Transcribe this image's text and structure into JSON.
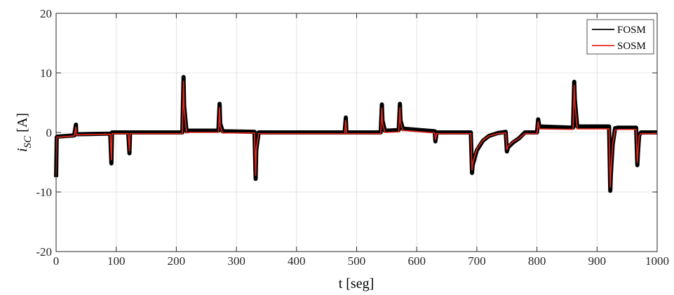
{
  "chart_data": {
    "type": "line",
    "xlabel": "t [seg]",
    "ylabel_main": "i",
    "ylabel_sub": "SC",
    "ylabel_unit": " [A]",
    "xlim": [
      0,
      1000
    ],
    "ylim": [
      -20,
      20
    ],
    "xticks": [
      0,
      100,
      200,
      300,
      400,
      500,
      600,
      700,
      800,
      900,
      1000
    ],
    "yticks": [
      -20,
      -10,
      0,
      10,
      20
    ],
    "grid": true,
    "legend_position": "top-right",
    "series": [
      {
        "name": "FOSM",
        "color": "#000000",
        "band": 0.35,
        "x": [
          0,
          1,
          2,
          30,
          33,
          33.5,
          36,
          90,
          92,
          93,
          95,
          97,
          120,
          122,
          123,
          125,
          127,
          210,
          212,
          213,
          217,
          222,
          270,
          272,
          273,
          277,
          280,
          330,
          332,
          333,
          337,
          342,
          410,
          480,
          482,
          483,
          486,
          540,
          542,
          543,
          547,
          550,
          570,
          572,
          573,
          577,
          580,
          630,
          631,
          633,
          636,
          690,
          692,
          693,
          700,
          710,
          720,
          735,
          748,
          750,
          752,
          760,
          770,
          780,
          800,
          802,
          804,
          860,
          862,
          863,
          867,
          872,
          920,
          922,
          923,
          926,
          930,
          935,
          965,
          967,
          968,
          970,
          973,
          1000
        ],
        "y": [
          -7.5,
          -0.8,
          -0.7,
          -0.5,
          1.3,
          -0.3,
          -0.3,
          -0.2,
          -5.2,
          0.0,
          0.0,
          0.0,
          0.0,
          -3.5,
          0.0,
          0.0,
          0.0,
          0.0,
          9.3,
          4.5,
          0.2,
          0.3,
          0.3,
          4.8,
          1.5,
          0.2,
          0.2,
          0.1,
          -7.8,
          -3.0,
          0.0,
          0.0,
          0.0,
          0.0,
          2.5,
          0.0,
          0.0,
          0.0,
          4.7,
          2.0,
          0.3,
          0.3,
          0.4,
          4.8,
          2.0,
          0.6,
          0.6,
          0.2,
          -1.5,
          0.0,
          0.0,
          0.0,
          -6.8,
          -5.5,
          -3.0,
          -1.4,
          -0.6,
          -0.1,
          0.1,
          -3.2,
          -2.5,
          -1.7,
          -1.0,
          0.0,
          0.0,
          2.2,
          1.0,
          0.8,
          8.5,
          5.5,
          1.0,
          1.0,
          1.0,
          -9.8,
          -7.0,
          -2.0,
          0.7,
          0.8,
          0.8,
          -5.5,
          -3.5,
          -0.5,
          0.0,
          0.0
        ]
      },
      {
        "name": "SOSM",
        "color": "#e8281e",
        "band": 0,
        "x": [
          0,
          1,
          2,
          30,
          33,
          33.5,
          36,
          90,
          92,
          93,
          95,
          97,
          120,
          122,
          123,
          125,
          127,
          210,
          212,
          213,
          217,
          222,
          270,
          272,
          273,
          277,
          280,
          330,
          332,
          333,
          337,
          342,
          410,
          480,
          482,
          483,
          486,
          540,
          542,
          543,
          547,
          550,
          570,
          572,
          573,
          577,
          580,
          630,
          631,
          633,
          636,
          690,
          692,
          693,
          700,
          710,
          720,
          735,
          748,
          750,
          752,
          760,
          770,
          780,
          800,
          802,
          804,
          860,
          862,
          863,
          867,
          872,
          920,
          922,
          923,
          926,
          930,
          935,
          965,
          967,
          968,
          970,
          973,
          1000
        ],
        "y": [
          -7.2,
          -0.9,
          -0.8,
          -0.6,
          0.9,
          -0.4,
          -0.4,
          -0.3,
          -4.6,
          -0.2,
          -0.2,
          -0.2,
          -0.2,
          -3.1,
          -0.2,
          -0.2,
          -0.2,
          -0.2,
          8.6,
          4.0,
          -0.1,
          0.0,
          0.0,
          4.2,
          1.1,
          -0.1,
          -0.1,
          -0.1,
          -7.2,
          -2.8,
          -0.2,
          -0.2,
          -0.2,
          -0.2,
          2.0,
          -0.2,
          -0.2,
          -0.2,
          4.1,
          1.6,
          0.0,
          0.0,
          0.1,
          4.2,
          1.6,
          0.3,
          0.3,
          -0.1,
          -1.2,
          -0.2,
          -0.2,
          -0.2,
          -6.3,
          -5.2,
          -2.8,
          -1.3,
          -0.6,
          -0.2,
          -0.1,
          -2.9,
          -2.3,
          -1.6,
          -1.0,
          -0.2,
          -0.2,
          1.8,
          0.6,
          0.5,
          7.9,
          5.0,
          0.6,
          0.6,
          0.6,
          -9.2,
          -6.6,
          -2.0,
          0.4,
          0.5,
          0.5,
          -5.0,
          -3.2,
          -0.6,
          -0.2,
          -0.2
        ]
      }
    ]
  }
}
